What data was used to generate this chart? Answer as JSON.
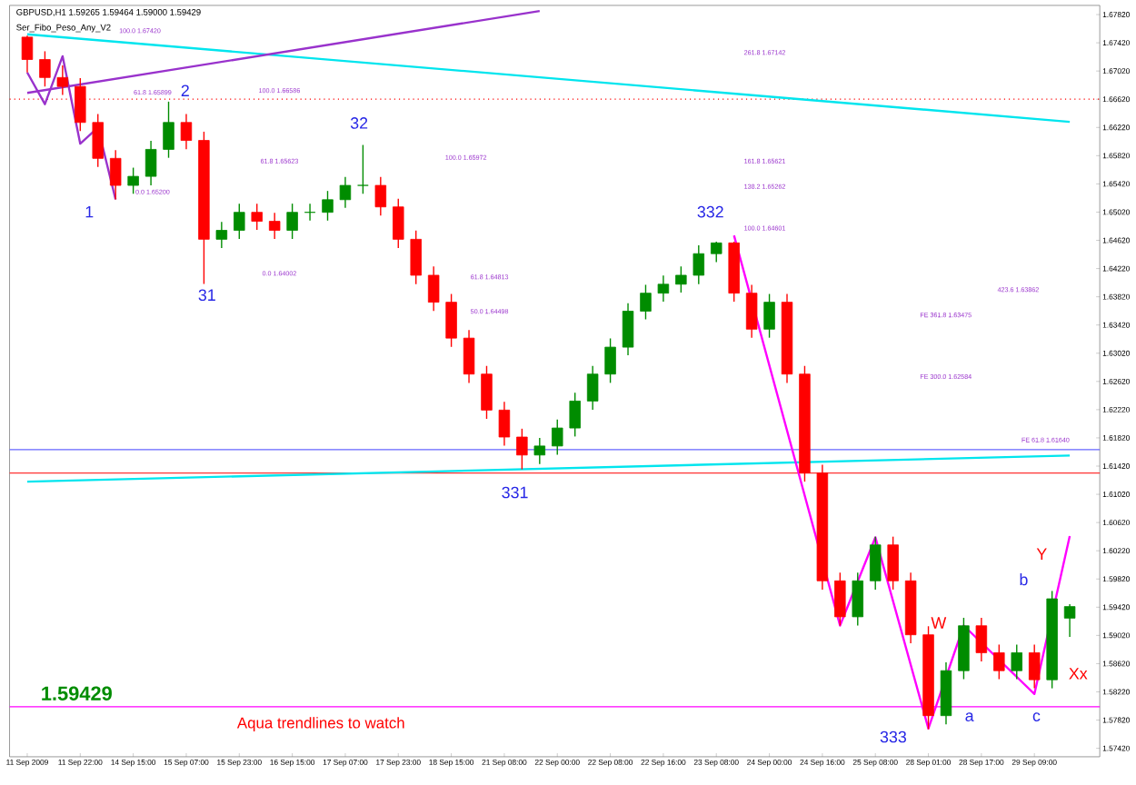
{
  "chart_data": {
    "type": "candlestick",
    "title": "GBPUSD,H1  1.59265 1.59464 1.59000 1.59429",
    "subtitle": "Ser_Fibo_Peso_Any_V2",
    "categories": [
      "11 Sep 2009",
      null,
      null,
      "11 Sep 22:00",
      null,
      null,
      "14 Sep 15:00",
      null,
      null,
      "15 Sep 07:00",
      null,
      null,
      "15 Sep 23:00",
      null,
      null,
      "16 Sep 15:00",
      null,
      null,
      "17 Sep 07:00",
      null,
      null,
      "17 Sep 23:00",
      null,
      null,
      "18 Sep 15:00",
      null,
      null,
      "21 Sep 08:00",
      null,
      null,
      "22 Sep 00:00",
      null,
      null,
      "22 Sep 08:00",
      null,
      null,
      "22 Sep 16:00",
      null,
      null,
      "23 Sep 08:00",
      null,
      null,
      "24 Sep 00:00",
      null,
      null,
      "24 Sep 16:00",
      null,
      null,
      "25 Sep 08:00",
      null,
      null,
      "28 Sep 01:00",
      null,
      null,
      "28 Sep 17:00",
      null,
      null,
      "29 Sep 09:00",
      null,
      null
    ],
    "ohlc": [
      [
        1.675,
        1.6752,
        1.67,
        1.67183
      ],
      [
        1.67183,
        1.673,
        1.668,
        1.66928
      ],
      [
        1.66928,
        1.671,
        1.6668,
        1.66801
      ],
      [
        1.66801,
        1.6692,
        1.6617,
        1.66291
      ],
      [
        1.66291,
        1.6641,
        1.6566,
        1.65782
      ],
      [
        1.65782,
        1.659,
        1.652,
        1.65399
      ],
      [
        1.65399,
        1.6565,
        1.6528,
        1.65527
      ],
      [
        1.65527,
        1.6603,
        1.654,
        1.65909
      ],
      [
        1.65909,
        1.66586,
        1.6579,
        1.66291
      ],
      [
        1.66291,
        1.6641,
        1.6591,
        1.66036
      ],
      [
        1.66036,
        1.6616,
        1.64002,
        1.64635
      ],
      [
        1.64635,
        1.6488,
        1.6451,
        1.64762
      ],
      [
        1.64762,
        1.6514,
        1.6464,
        1.65017
      ],
      [
        1.65017,
        1.6514,
        1.6477,
        1.6489
      ],
      [
        1.6489,
        1.6501,
        1.6464,
        1.64762
      ],
      [
        1.64762,
        1.6514,
        1.6464,
        1.65017
      ],
      [
        1.65017,
        1.6514,
        1.649,
        1.65017
      ],
      [
        1.65017,
        1.6532,
        1.649,
        1.65196
      ],
      [
        1.65196,
        1.6552,
        1.6508,
        1.65399
      ],
      [
        1.65399,
        1.65972,
        1.6528,
        1.65399
      ],
      [
        1.65399,
        1.6552,
        1.6497,
        1.65094
      ],
      [
        1.65094,
        1.6521,
        1.6451,
        1.64635
      ],
      [
        1.64635,
        1.6476,
        1.64,
        1.64125
      ],
      [
        1.64125,
        1.6425,
        1.6362,
        1.63743
      ],
      [
        1.63743,
        1.6386,
        1.6311,
        1.63234
      ],
      [
        1.63234,
        1.6335,
        1.626,
        1.62724
      ],
      [
        1.62724,
        1.6284,
        1.6209,
        1.62214
      ],
      [
        1.62214,
        1.6233,
        1.6171,
        1.61832
      ],
      [
        1.61832,
        1.6195,
        1.61374,
        1.61577
      ],
      [
        1.61577,
        1.6182,
        1.6145,
        1.61705
      ],
      [
        1.61705,
        1.6208,
        1.6158,
        1.6196
      ],
      [
        1.6196,
        1.6246,
        1.6184,
        1.62342
      ],
      [
        1.62342,
        1.6284,
        1.6222,
        1.62724
      ],
      [
        1.62724,
        1.6323,
        1.626,
        1.63106
      ],
      [
        1.63106,
        1.6373,
        1.6299,
        1.63616
      ],
      [
        1.63616,
        1.6399,
        1.635,
        1.63871
      ],
      [
        1.63871,
        1.6412,
        1.6375,
        1.63998
      ],
      [
        1.63998,
        1.6425,
        1.6388,
        1.64125
      ],
      [
        1.64125,
        1.6455,
        1.64,
        1.64431
      ],
      [
        1.64431,
        1.64601,
        1.6431,
        1.64584
      ],
      [
        1.64584,
        1.646,
        1.6375,
        1.63871
      ],
      [
        1.63871,
        1.6399,
        1.6324,
        1.63361
      ],
      [
        1.63361,
        1.6386,
        1.6324,
        1.63743
      ],
      [
        1.63743,
        1.6386,
        1.626,
        1.62724
      ],
      [
        1.62724,
        1.6284,
        1.612,
        1.61323
      ],
      [
        1.61323,
        1.6144,
        1.5967,
        1.59794
      ],
      [
        1.59794,
        1.5991,
        1.5916,
        1.59284
      ],
      [
        1.59284,
        1.5991,
        1.5916,
        1.59794
      ],
      [
        1.59794,
        1.6042,
        1.5967,
        1.60303
      ],
      [
        1.60303,
        1.6042,
        1.5967,
        1.59794
      ],
      [
        1.59794,
        1.5991,
        1.5891,
        1.59029
      ],
      [
        1.59029,
        1.5915,
        1.5769,
        1.57883
      ],
      [
        1.57883,
        1.5864,
        1.5776,
        1.5852
      ],
      [
        1.5852,
        1.5927,
        1.584,
        1.59157
      ],
      [
        1.59157,
        1.5927,
        1.5865,
        1.58775
      ],
      [
        1.58775,
        1.5889,
        1.584,
        1.5852
      ],
      [
        1.5852,
        1.5889,
        1.584,
        1.58775
      ],
      [
        1.58775,
        1.5889,
        1.5827,
        1.58392
      ],
      [
        1.58392,
        1.5965,
        1.5827,
        1.59539
      ],
      [
        1.59265,
        1.59464,
        1.59,
        1.59429
      ]
    ],
    "series": [
      {
        "type": "line",
        "color": "#00e5ee",
        "values": [
          1.6754,
          null,
          null,
          null,
          null,
          null,
          null,
          null,
          null,
          null,
          null,
          null,
          null,
          null,
          null,
          null,
          null,
          null,
          null,
          null,
          null,
          null,
          null,
          null,
          null,
          null,
          null,
          null,
          null,
          null,
          null,
          null,
          null,
          null,
          null,
          null,
          null,
          null,
          null,
          null,
          null,
          null,
          null,
          null,
          null,
          null,
          null,
          null,
          null,
          null,
          null,
          null,
          null,
          null,
          null,
          null,
          null,
          null,
          null,
          1.663
        ]
      },
      {
        "type": "line",
        "color": "#00e5ee",
        "values": [
          1.612,
          null,
          null,
          null,
          null,
          null,
          null,
          null,
          null,
          null,
          null,
          null,
          null,
          null,
          null,
          null,
          null,
          null,
          null,
          null,
          null,
          null,
          null,
          null,
          null,
          null,
          null,
          null,
          null,
          null,
          null,
          null,
          null,
          null,
          null,
          null,
          null,
          null,
          null,
          null,
          null,
          null,
          null,
          null,
          null,
          null,
          null,
          null,
          null,
          null,
          null,
          null,
          null,
          null,
          null,
          null,
          null,
          null,
          null,
          1.6157
        ]
      },
      {
        "type": "line",
        "color": "#9932cc",
        "values": [
          1.6671,
          null,
          null,
          null,
          null,
          null,
          null,
          null,
          null,
          null,
          null,
          null,
          null,
          null,
          null,
          null,
          null,
          null,
          null,
          null,
          null,
          null,
          null,
          null,
          null,
          null,
          null,
          null,
          null,
          1.6787,
          null,
          null,
          null,
          null,
          null,
          null,
          null,
          null,
          null,
          null,
          null,
          null,
          null,
          null,
          null,
          null,
          null,
          null,
          null,
          null,
          null,
          null,
          null,
          null,
          null,
          null,
          null,
          null,
          null,
          null
        ]
      },
      {
        "type": "line",
        "color": "#9932cc",
        "values": [
          1.67,
          1.6655,
          1.6723,
          1.6599,
          1.6622,
          1.652,
          null,
          null,
          null,
          null,
          null,
          null,
          null,
          null,
          null,
          null,
          null,
          null,
          null,
          null,
          null,
          null,
          null,
          null,
          null,
          null,
          null,
          null,
          null,
          null,
          null,
          null,
          null,
          null,
          null,
          null,
          null,
          null,
          null,
          null,
          null,
          null,
          null,
          null,
          null,
          null,
          null,
          null,
          null,
          null,
          null,
          null,
          null,
          null,
          null,
          null,
          null,
          null,
          null,
          null
        ]
      },
      {
        "type": "line",
        "color": "#ff00ff",
        "values": [
          null,
          null,
          null,
          null,
          null,
          null,
          null,
          null,
          null,
          null,
          null,
          null,
          null,
          null,
          null,
          null,
          null,
          null,
          null,
          null,
          null,
          null,
          null,
          null,
          null,
          null,
          null,
          null,
          null,
          null,
          null,
          null,
          null,
          null,
          null,
          null,
          null,
          null,
          null,
          null,
          1.6469,
          null,
          null,
          null,
          null,
          null,
          1.5916,
          null,
          1.6041,
          null,
          null,
          1.577,
          null,
          1.5916,
          null,
          null,
          null,
          1.5819,
          null,
          1.6043
        ]
      }
    ],
    "ref_lines": [
      {
        "axis": "y",
        "value": 1.66622,
        "color": "#ff0000",
        "line_style": "dotted"
      },
      {
        "axis": "y",
        "value": 1.61654,
        "color": "#6666ff",
        "line_style": "solid"
      },
      {
        "axis": "y",
        "value": 1.61323,
        "color": "#ff3333",
        "line_style": "solid"
      },
      {
        "axis": "y",
        "value": 1.5801,
        "color": "#ff00ff",
        "line_style": "solid"
      }
    ],
    "ylim": [
      1.573,
      1.6795
    ],
    "yticks": [
      {
        "value": 1.5742,
        "label": "1.57420"
      },
      {
        "value": 1.5782,
        "label": "1.57820"
      },
      {
        "value": 1.5822,
        "label": "1.58220"
      },
      {
        "value": 1.5862,
        "label": "1.58620"
      },
      {
        "value": 1.5902,
        "label": "1.59020"
      },
      {
        "value": 1.5942,
        "label": "1.59420"
      },
      {
        "value": 1.5982,
        "label": "1.59820"
      },
      {
        "value": 1.6022,
        "label": "1.60220"
      },
      {
        "value": 1.6062,
        "label": "1.60620"
      },
      {
        "value": 1.6102,
        "label": "1.61020"
      },
      {
        "value": 1.6142,
        "label": "1.61420"
      },
      {
        "value": 1.6182,
        "label": "1.61820"
      },
      {
        "value": 1.6222,
        "label": "1.62220"
      },
      {
        "value": 1.6262,
        "label": "1.62620"
      },
      {
        "value": 1.6302,
        "label": "1.63020"
      },
      {
        "value": 1.6342,
        "label": "1.63420"
      },
      {
        "value": 1.6382,
        "label": "1.63820"
      },
      {
        "value": 1.6422,
        "label": "1.64220"
      },
      {
        "value": 1.6462,
        "label": "1.64620"
      },
      {
        "value": 1.6502,
        "label": "1.65020"
      },
      {
        "value": 1.6542,
        "label": "1.65420"
      },
      {
        "value": 1.6582,
        "label": "1.65820"
      },
      {
        "value": 1.6622,
        "label": "1.66220"
      },
      {
        "value": 1.6662,
        "label": "1.66620"
      },
      {
        "value": 1.6702,
        "label": "1.67020"
      },
      {
        "value": 1.6742,
        "label": "1.67420"
      },
      {
        "value": 1.6782,
        "label": "1.67820"
      }
    ],
    "annotations": [
      "1",
      "2",
      "31",
      "32",
      "331",
      "332",
      "333",
      "W",
      "Y",
      "Xx",
      "a",
      "b",
      "c",
      "1.59429",
      "Aqua trendlines to watch",
      "100.0  1.67420",
      "61.8  1.65899",
      "0.0  1.65200",
      "100.0  1.66586",
      "61.8  1.65623",
      "0.0  1.64002",
      "100.0  1.65972",
      "61.8  1.64813",
      "50.0  1.64498",
      "261.8  1.67142",
      "161.8  1.65621",
      "138.2  1.65262",
      "100.0  1.64601",
      "423.6  1.63862",
      "FE 361.8  1.63475",
      "FE 300.0  1.62584",
      "FE 61.8  1.61640"
    ],
    "grid": false
  }
}
